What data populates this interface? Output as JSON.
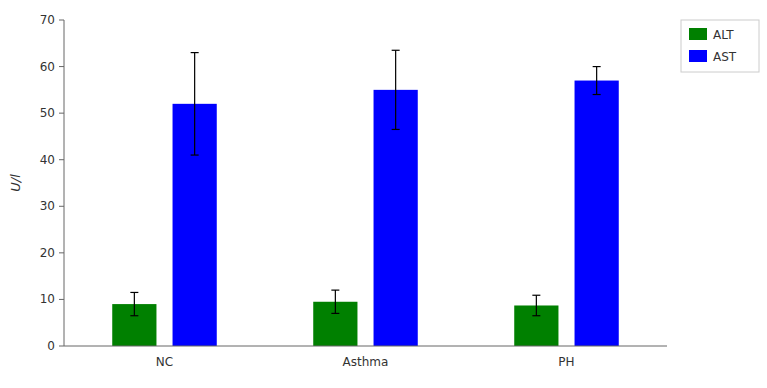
{
  "chart_data": {
    "type": "bar",
    "categories": [
      "NC",
      "Asthma",
      "PH"
    ],
    "series": [
      {
        "name": "ALT",
        "color": "#008000",
        "values": [
          9.0,
          9.5,
          8.7
        ],
        "errors": [
          2.5,
          2.5,
          2.2
        ]
      },
      {
        "name": "AST",
        "color": "#0000FF",
        "values": [
          52.0,
          55.0,
          57.0
        ],
        "errors": [
          11.0,
          8.5,
          3.0
        ]
      }
    ],
    "ylabel": "U/l",
    "ylim": [
      0,
      70
    ],
    "yticks": [
      0,
      10,
      20,
      30,
      40,
      50,
      60,
      70
    ],
    "grid": false,
    "legend": "upper right"
  }
}
